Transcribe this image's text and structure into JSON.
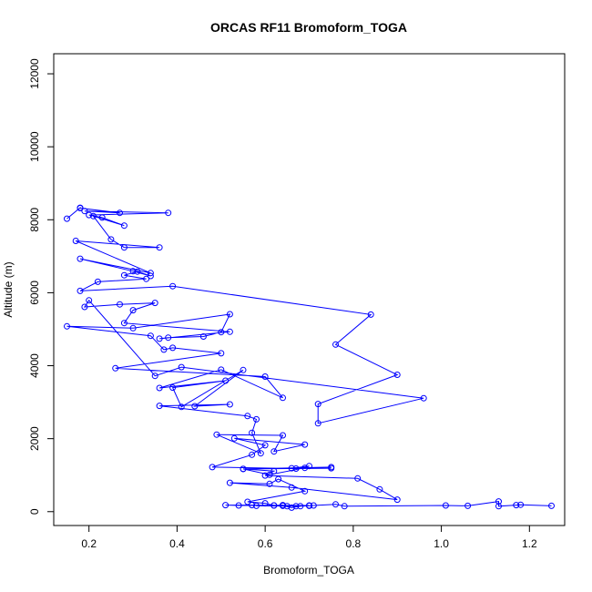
{
  "chart_data": {
    "type": "line",
    "title": "ORCAS RF11 Bromoform_TOGA",
    "xlabel": "Bromoform_TOGA",
    "ylabel": "Altitude (m)",
    "xlim": [
      0.12,
      1.28
    ],
    "ylim": [
      -380,
      12550
    ],
    "xticks": [
      0.2,
      0.4,
      0.6,
      0.8,
      1.0,
      1.2
    ],
    "xtick_labels": [
      "0.2",
      "0.4",
      "0.6",
      "0.8",
      "1.0",
      "1.2"
    ],
    "yticks": [
      0,
      2000,
      4000,
      6000,
      8000,
      10000,
      12000
    ],
    "ytick_labels": [
      "0",
      "2000",
      "4000",
      "6000",
      "8000",
      "10000",
      "12000"
    ],
    "grid": false,
    "marker": "open-circle",
    "color": "#0000ff",
    "series": [
      {
        "x": [
          0.15,
          0.18,
          0.18,
          0.27,
          0.19,
          0.38,
          0.2,
          0.23,
          0.28,
          0.21,
          0.25,
          0.28,
          0.36,
          0.17,
          0.34,
          0.18,
          0.3,
          0.34,
          0.31,
          0.28,
          0.33,
          0.22,
          0.18,
          0.39,
          0.84,
          0.76,
          0.9,
          0.72,
          0.72,
          0.96,
          0.41,
          0.35,
          0.2,
          0.19,
          0.27,
          0.35,
          0.3,
          0.28,
          0.52,
          0.36,
          0.38,
          0.46,
          0.5,
          0.52,
          0.3,
          0.15,
          0.34,
          0.37,
          0.39,
          0.5,
          0.26,
          0.6,
          0.64,
          0.5,
          0.36,
          0.51,
          0.39,
          0.41,
          0.55,
          0.44,
          0.52,
          0.36,
          0.56,
          0.58,
          0.57,
          0.59,
          0.49,
          0.64,
          0.62,
          0.69,
          0.53,
          0.6,
          0.57,
          0.48,
          0.67,
          0.75,
          0.55,
          0.61,
          0.69,
          0.7,
          0.66,
          0.75,
          0.55,
          0.62,
          0.6,
          0.81,
          0.86,
          0.9,
          0.66,
          0.52,
          0.61,
          0.63,
          0.69,
          0.56,
          0.6,
          0.62,
          0.65,
          0.64,
          0.58,
          0.67,
          0.7,
          0.54,
          0.51,
          0.57,
          0.62,
          0.64,
          0.66,
          0.68,
          0.7,
          0.71,
          0.76,
          0.78,
          1.01,
          1.06,
          1.13,
          1.13,
          1.17,
          1.18,
          1.25
        ],
        "y": [
          8030,
          8330,
          8320,
          8190,
          8240,
          8190,
          8130,
          8060,
          7840,
          8100,
          7460,
          7240,
          7240,
          7420,
          6540,
          6930,
          6590,
          6460,
          6580,
          6480,
          6380,
          6300,
          6050,
          6180,
          5400,
          4580,
          3750,
          2950,
          2420,
          3110,
          3960,
          3720,
          5790,
          5610,
          5680,
          5720,
          5520,
          5170,
          4930,
          4740,
          4770,
          4800,
          4920,
          5410,
          5030,
          5080,
          4820,
          4440,
          4490,
          4340,
          3930,
          3700,
          3120,
          3890,
          3390,
          3590,
          3400,
          2870,
          3880,
          2890,
          2940,
          2900,
          2620,
          2530,
          2160,
          1600,
          2110,
          2090,
          1650,
          1840,
          2010,
          1820,
          1560,
          1220,
          1180,
          1190,
          1170,
          1010,
          1200,
          1250,
          1190,
          1220,
          1170,
          1110,
          990,
          910,
          610,
          330,
          660,
          790,
          760,
          890,
          560,
          270,
          230,
          170,
          150,
          180,
          160,
          150,
          170,
          170,
          180,
          180,
          170,
          160,
          110,
          150,
          160,
          170,
          200,
          150,
          170,
          160,
          280,
          150,
          180,
          190,
          160
        ]
      }
    ]
  }
}
